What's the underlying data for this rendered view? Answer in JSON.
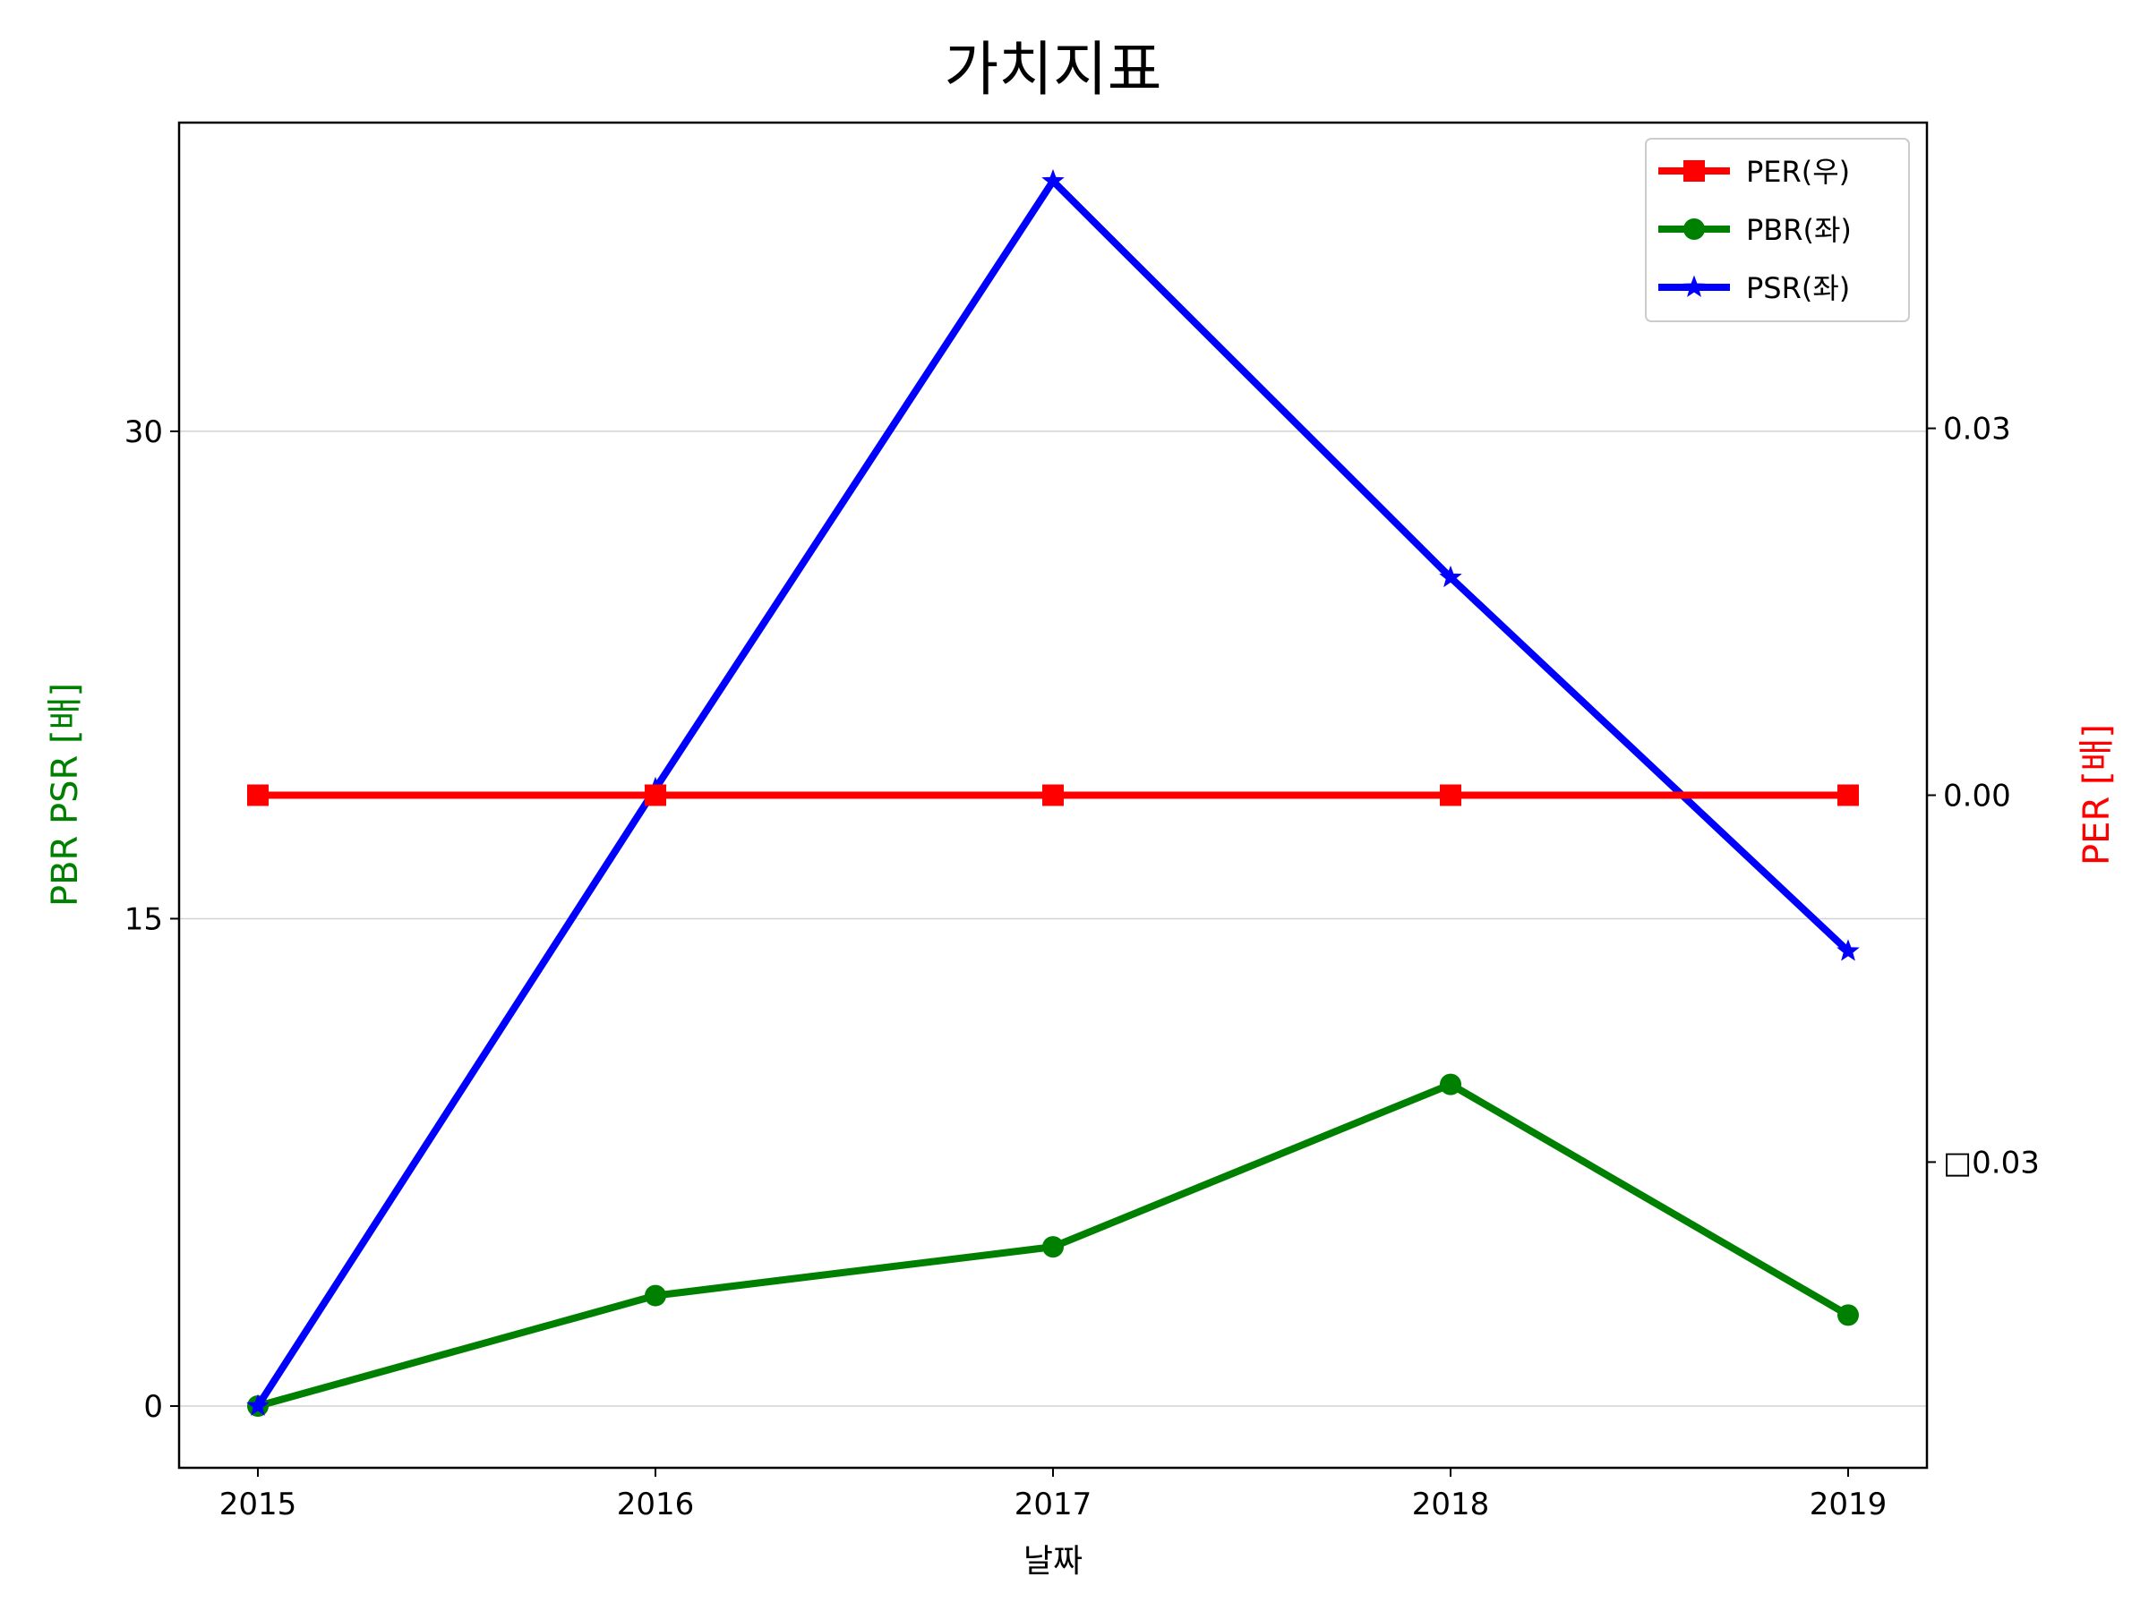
{
  "chart_data": {
    "type": "line",
    "title": "가치지표",
    "xlabel": "날짜",
    "ylabel_left": "PBR PSR [배]",
    "ylabel_right": "PER [배]",
    "x": [
      "2015",
      "2016",
      "2017",
      "2018",
      "2019"
    ],
    "x_ticks": [
      "2015",
      "2016",
      "2017",
      "2018",
      "2019"
    ],
    "y_left_ticks": [
      0,
      15,
      30
    ],
    "y_left_tick_labels": [
      "0",
      "15",
      "30"
    ],
    "y_left_lim": [
      -1.9,
      39.5
    ],
    "y_right_ticks": [
      -0.03,
      0.0,
      0.03
    ],
    "y_right_tick_labels": [
      "□0.03",
      "0.00",
      "0.03"
    ],
    "y_right_lim": [
      -0.055,
      0.055
    ],
    "grid": "horizontal",
    "legend_position": "top-right",
    "series": [
      {
        "name": "PER(우)",
        "axis": "right",
        "color": "#ff0000",
        "marker": "square",
        "values": [
          0,
          0,
          0,
          0,
          0
        ]
      },
      {
        "name": "PBR(좌)",
        "axis": "left",
        "color": "#008000",
        "marker": "circle",
        "values": [
          0,
          3.4,
          4.9,
          9.9,
          2.8
        ]
      },
      {
        "name": "PSR(좌)",
        "axis": "left",
        "color": "#0000ff",
        "marker": "star",
        "values": [
          0,
          19.0,
          37.7,
          25.5,
          14.0
        ]
      }
    ],
    "colors": {
      "left_axis_label": "#008000",
      "right_axis_label": "#ff0000"
    }
  }
}
